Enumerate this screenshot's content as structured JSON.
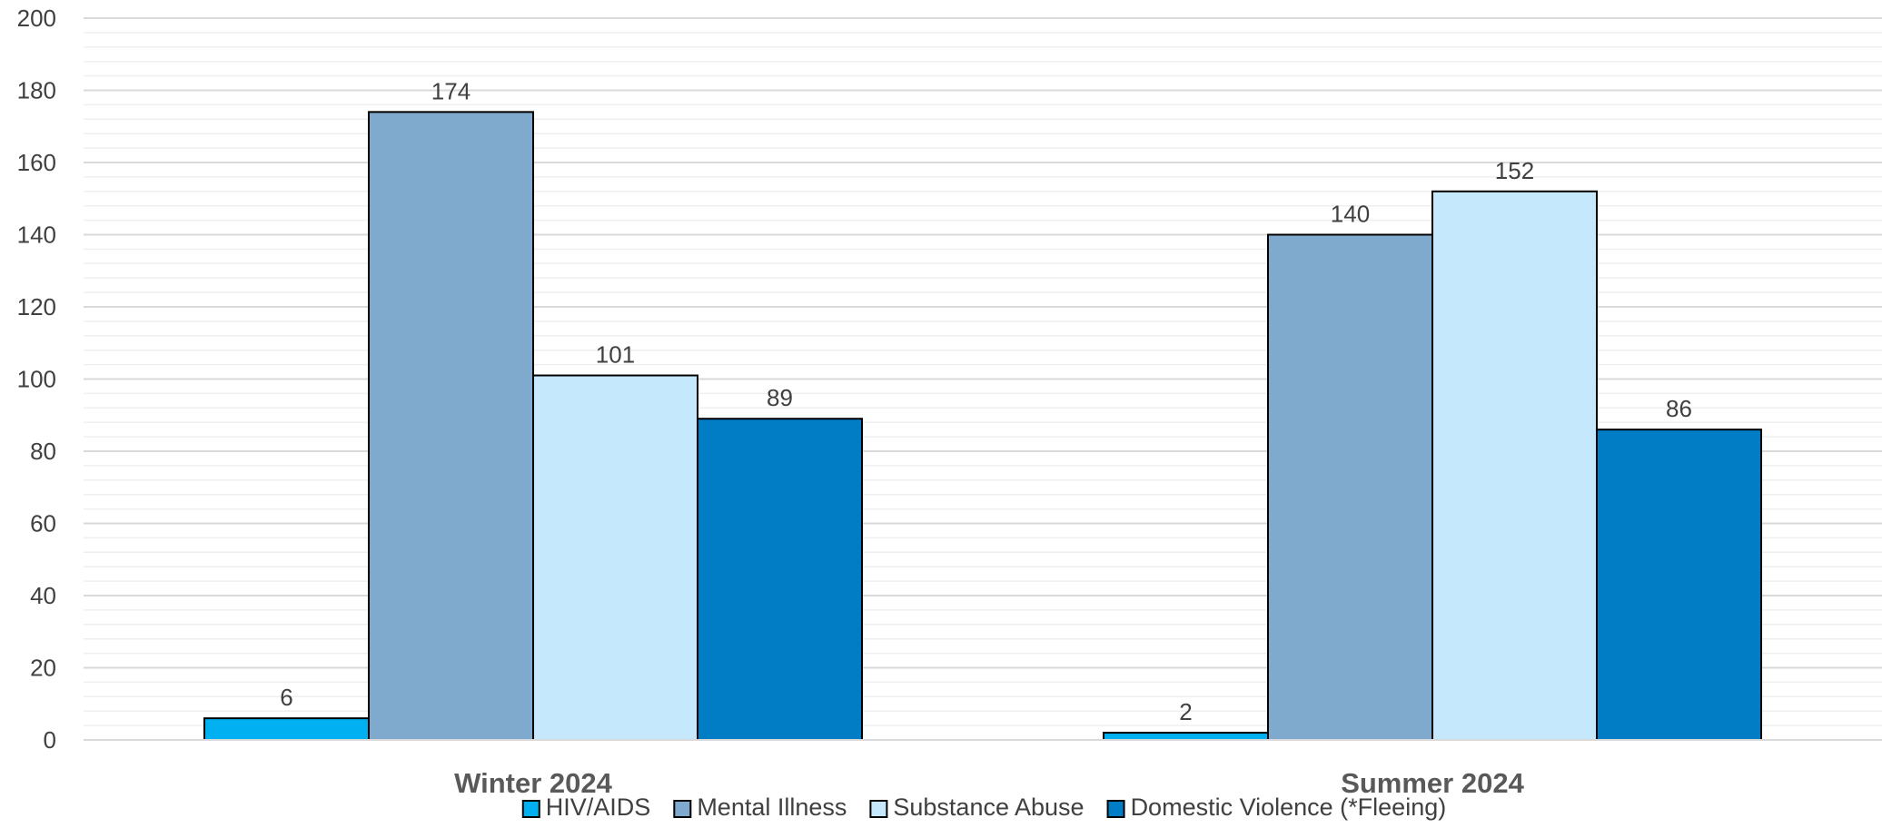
{
  "chart_data": {
    "type": "bar",
    "categories": [
      "Winter 2024",
      "Summer 2024"
    ],
    "series": [
      {
        "name": "HIV/AIDS",
        "values": [
          6,
          2
        ],
        "color": "#00B0F0"
      },
      {
        "name": "Mental Illness",
        "values": [
          174,
          140
        ],
        "color": "#7FAACD"
      },
      {
        "name": "Substance Abuse",
        "values": [
          101,
          152
        ],
        "color": "#C5E8FC"
      },
      {
        "name": "Domestic Violence (*Fleeing)",
        "values": [
          89,
          86
        ],
        "color": "#007DC5"
      }
    ],
    "y_ticks": [
      "0",
      "20",
      "40",
      "60",
      "80",
      "100",
      "120",
      "140",
      "160",
      "180",
      "200"
    ],
    "ylim": [
      0,
      200
    ],
    "grid": true,
    "legend_position": "bottom",
    "data_labels": true
  }
}
